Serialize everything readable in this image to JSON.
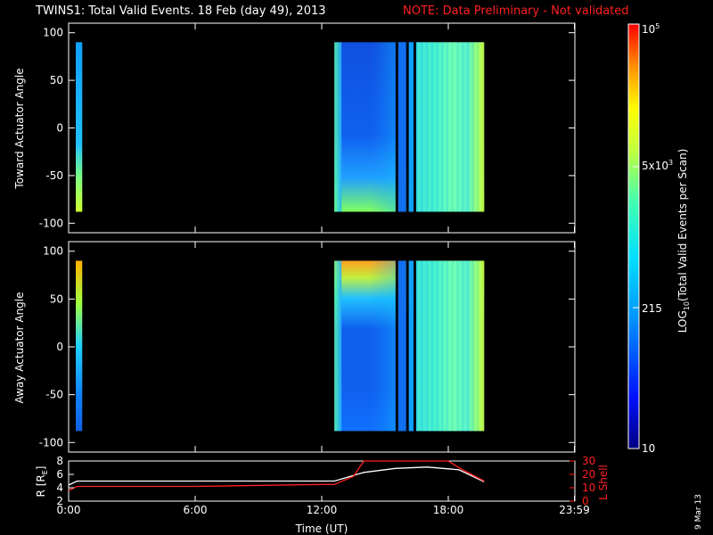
{
  "title": {
    "main": "TWINS1: Total Valid Events. 18 Feb (day  49), 2013",
    "note": "NOTE: Data Preliminary - Not validated"
  },
  "date_stamp": "9 Mar 13",
  "colorbar": {
    "label": "LOG10(Total Valid Events per Scan)",
    "ticks": [
      "10",
      "215",
      "5x10^3",
      "10^5"
    ],
    "tick_values": [
      10,
      215,
      5000,
      100000
    ],
    "colors": [
      "#000080",
      "#0000ff",
      "#00a0ff",
      "#00ffff",
      "#80ff80",
      "#ffff00",
      "#ff8000",
      "#ff0000"
    ]
  },
  "chart_data": [
    {
      "type": "heatmap",
      "panel": "toward",
      "ylabel": "Toward Actuator Angle",
      "ylim": [
        -110,
        110
      ],
      "yticks": [
        100,
        50,
        0,
        -50,
        -100
      ],
      "xlim": [
        0,
        24
      ],
      "angle_range": [
        -88,
        90
      ],
      "segments": [
        {
          "t_start": 0.0,
          "t_end": 0.35,
          "level_top": 0.4,
          "level_bottom": 0.62
        },
        {
          "t_start": 12.6,
          "t_end": 19.7
        }
      ],
      "data_gaps_hours": [
        15.5,
        16.0,
        16.35
      ],
      "description_levels": {
        "low": "blue",
        "high": "green-yellow"
      }
    },
    {
      "type": "heatmap",
      "panel": "away",
      "ylabel": "Away Actuator Angle",
      "ylim": [
        -110,
        110
      ],
      "yticks": [
        100,
        50,
        0,
        -50,
        -100
      ],
      "xlim": [
        0,
        24
      ],
      "angle_range": [
        -88,
        90
      ],
      "segments": [
        {
          "t_start": 0.0,
          "t_end": 0.35,
          "level_top": 0.7,
          "level_bottom": 0.35
        },
        {
          "t_start": 12.6,
          "t_end": 19.7
        }
      ],
      "data_gaps_hours": [
        15.5,
        16.0,
        16.35
      ]
    },
    {
      "type": "line",
      "panel": "orbit",
      "ylabel": "R [RE]",
      "y2label": "L Shell",
      "ylim": [
        2,
        8
      ],
      "yticks": [
        2,
        4,
        6,
        8
      ],
      "y2lim": [
        0,
        30
      ],
      "y2ticks": [
        0,
        10,
        20,
        30
      ],
      "xlim": [
        0,
        24
      ],
      "xticks": [
        "0:00",
        "6:00",
        "12:00",
        "18:00",
        "23:59"
      ],
      "xtick_values": [
        0,
        6,
        12,
        18,
        23.98
      ],
      "xlabel": "Time (UT)",
      "series": [
        {
          "color": "#ffffff",
          "x": [
            0,
            0.4,
            6,
            12,
            12.6,
            14,
            15.5,
            17,
            18.5,
            19.7
          ],
          "y": [
            4.4,
            5.0,
            5.0,
            5.0,
            5.0,
            6.3,
            6.9,
            7.1,
            6.7,
            4.9
          ]
        },
        {
          "color": "#ff2020",
          "x": [
            0,
            0.4,
            6,
            12,
            12.6,
            13.5,
            14.0,
            18.0,
            18.5,
            19.7
          ],
          "y": [
            3.6,
            4.2,
            4.2,
            4.5,
            4.5,
            5.7,
            8.0,
            8.0,
            7.0,
            5.0
          ]
        }
      ]
    }
  ]
}
